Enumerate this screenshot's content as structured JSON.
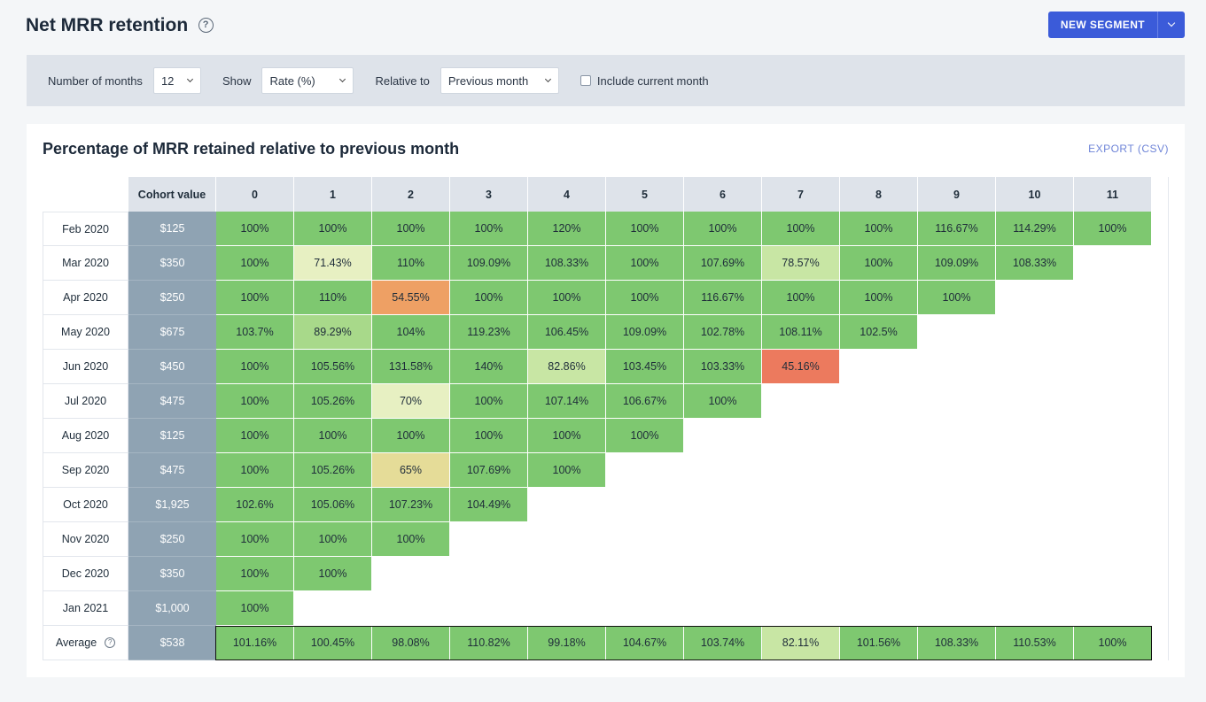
{
  "header": {
    "title": "Net MRR retention",
    "help_icon": "?",
    "new_segment_label": "NEW SEGMENT"
  },
  "filters": {
    "months_label": "Number of months",
    "months_value": "12",
    "show_label": "Show",
    "show_value": "Rate (%)",
    "relative_label": "Relative to",
    "relative_value": "Previous month",
    "include_label": "Include current month"
  },
  "card": {
    "title": "Percentage of MRR retained relative to previous month",
    "export_label": "EXPORT (CSV)"
  },
  "table": {
    "cohort_header": "Cohort value",
    "columns": [
      "0",
      "1",
      "2",
      "3",
      "4",
      "5",
      "6",
      "7",
      "8",
      "9",
      "10",
      "11"
    ],
    "rows": [
      {
        "label": "Feb 2020",
        "value": "$125",
        "cells": [
          "100%",
          "100%",
          "100%",
          "100%",
          "120%",
          "100%",
          "100%",
          "100%",
          "100%",
          "116.67%",
          "114.29%",
          "100%"
        ]
      },
      {
        "label": "Mar 2020",
        "value": "$350",
        "cells": [
          "100%",
          "71.43%",
          "110%",
          "109.09%",
          "108.33%",
          "100%",
          "107.69%",
          "78.57%",
          "100%",
          "109.09%",
          "108.33%"
        ]
      },
      {
        "label": "Apr 2020",
        "value": "$250",
        "cells": [
          "100%",
          "110%",
          "54.55%",
          "100%",
          "100%",
          "100%",
          "116.67%",
          "100%",
          "100%",
          "100%"
        ]
      },
      {
        "label": "May 2020",
        "value": "$675",
        "cells": [
          "103.7%",
          "89.29%",
          "104%",
          "119.23%",
          "106.45%",
          "109.09%",
          "102.78%",
          "108.11%",
          "102.5%"
        ]
      },
      {
        "label": "Jun 2020",
        "value": "$450",
        "cells": [
          "100%",
          "105.56%",
          "131.58%",
          "140%",
          "82.86%",
          "103.45%",
          "103.33%",
          "45.16%"
        ]
      },
      {
        "label": "Jul 2020",
        "value": "$475",
        "cells": [
          "100%",
          "105.26%",
          "70%",
          "100%",
          "107.14%",
          "106.67%",
          "100%"
        ]
      },
      {
        "label": "Aug 2020",
        "value": "$125",
        "cells": [
          "100%",
          "100%",
          "100%",
          "100%",
          "100%",
          "100%"
        ]
      },
      {
        "label": "Sep 2020",
        "value": "$475",
        "cells": [
          "100%",
          "105.26%",
          "65%",
          "107.69%",
          "100%"
        ]
      },
      {
        "label": "Oct 2020",
        "value": "$1,925",
        "cells": [
          "102.6%",
          "105.06%",
          "107.23%",
          "104.49%"
        ]
      },
      {
        "label": "Nov 2020",
        "value": "$250",
        "cells": [
          "100%",
          "100%",
          "100%"
        ]
      },
      {
        "label": "Dec 2020",
        "value": "$350",
        "cells": [
          "100%",
          "100%"
        ]
      },
      {
        "label": "Jan 2021",
        "value": "$1,000",
        "cells": [
          "100%"
        ]
      }
    ],
    "average": {
      "label": "Average",
      "value": "$538",
      "cells": [
        "101.16%",
        "100.45%",
        "98.08%",
        "110.82%",
        "99.18%",
        "104.67%",
        "103.74%",
        "82.11%",
        "101.56%",
        "108.33%",
        "110.53%",
        "100%"
      ]
    }
  },
  "colors": {
    "accent": "#3b5bd9",
    "heat_high": "#7ec870",
    "heat_90": "#a8d98a",
    "heat_80": "#c8e6a4",
    "heat_70": "#e7f0c2",
    "heat_60": "#e5dc98",
    "heat_50": "#eea064",
    "heat_low": "#ec7a5e"
  }
}
